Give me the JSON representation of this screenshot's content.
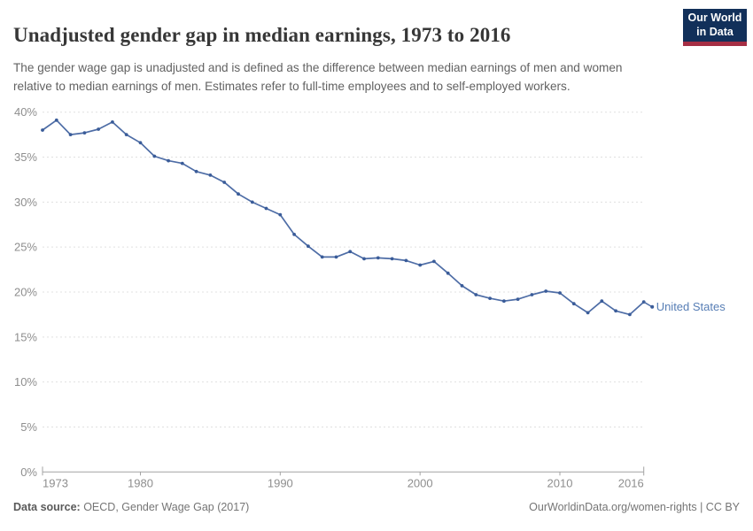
{
  "header": {
    "title": "Unadjusted gender gap in median earnings, 1973 to 2016",
    "logo": {
      "line1": "Our World",
      "line2": "in Data"
    }
  },
  "subtitle": "The gender wage gap is unadjusted and is defined as the difference between median earnings of men and women relative to median earnings of men. Estimates refer to full-time employees and to self-employed workers.",
  "chart_data": {
    "type": "line",
    "title": "Unadjusted gender gap in median earnings, 1973 to 2016",
    "xlabel": "",
    "ylabel": "",
    "xlim": [
      1973,
      2016
    ],
    "ylim": [
      0,
      40
    ],
    "y_ticks": [
      0,
      5,
      10,
      15,
      20,
      25,
      30,
      35,
      40
    ],
    "y_tick_suffix": "%",
    "x_ticks": [
      1973,
      1980,
      1990,
      2000,
      2010,
      2016
    ],
    "grid": "horizontal-dashed",
    "legend_position": "end-of-line-label",
    "series": [
      {
        "name": "United States",
        "x": [
          1973,
          1974,
          1975,
          1976,
          1977,
          1978,
          1979,
          1980,
          1981,
          1982,
          1983,
          1984,
          1985,
          1986,
          1987,
          1988,
          1989,
          1990,
          1991,
          1992,
          1993,
          1994,
          1995,
          1996,
          1997,
          1998,
          1999,
          2000,
          2001,
          2002,
          2003,
          2004,
          2005,
          2006,
          2007,
          2008,
          2009,
          2010,
          2011,
          2012,
          2013,
          2014,
          2015,
          2016
        ],
        "values": [
          38.0,
          39.1,
          37.5,
          37.7,
          38.1,
          38.9,
          37.5,
          36.6,
          35.1,
          34.6,
          34.3,
          33.4,
          33.0,
          32.2,
          30.9,
          30.0,
          29.3,
          28.6,
          26.4,
          25.1,
          23.9,
          23.9,
          24.5,
          23.7,
          23.8,
          23.7,
          23.5,
          23.0,
          23.4,
          22.1,
          20.7,
          19.7,
          19.3,
          19.0,
          19.2,
          19.7,
          20.1,
          19.9,
          18.7,
          17.7,
          19.0,
          17.9,
          17.5,
          18.9
        ]
      }
    ]
  },
  "colors": {
    "line": "#4e6da6",
    "marker": "#3a5c99",
    "series_label": "#577eb5",
    "grid": "#e0e0e0",
    "axis": "#a3a3a3",
    "tick_label": "#8e8e8e",
    "logo_bg": "#12305a",
    "logo_stripe": "#a52e44"
  },
  "footer": {
    "source_label": "Data source:",
    "source_text": " OECD, Gender Wage Gap (2017)",
    "attribution": "OurWorldinData.org/women-rights | CC BY"
  }
}
